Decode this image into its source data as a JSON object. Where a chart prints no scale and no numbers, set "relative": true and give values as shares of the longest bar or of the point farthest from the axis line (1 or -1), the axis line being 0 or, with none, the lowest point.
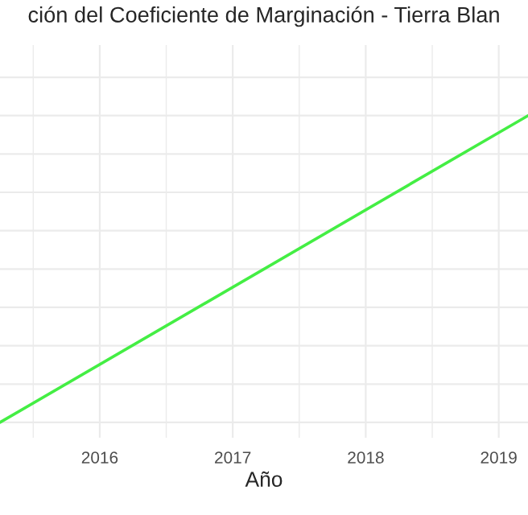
{
  "chart_data": {
    "type": "line",
    "title": "ción del Coeficiente de Marginación - Tierra Blan",
    "xlabel": "Año",
    "x": [
      2015.25,
      2019.22
    ],
    "series": [
      {
        "color": "#44ee44",
        "values": [
          0,
          1
        ]
      }
    ],
    "relative": true,
    "xlim": [
      2015.25,
      2019.22
    ],
    "xticks": [
      2016,
      2017,
      2018,
      2019
    ],
    "grid": true,
    "tick_labels": "x",
    "legend": false
  }
}
